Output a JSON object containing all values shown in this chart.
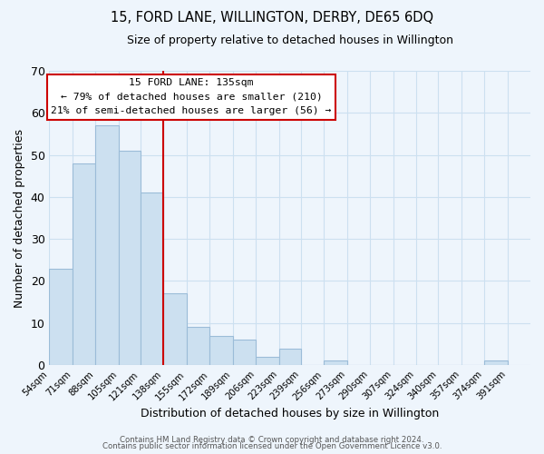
{
  "title": "15, FORD LANE, WILLINGTON, DERBY, DE65 6DQ",
  "subtitle": "Size of property relative to detached houses in Willington",
  "xlabel": "Distribution of detached houses by size in Willington",
  "ylabel": "Number of detached properties",
  "bar_color": "#cce0f0",
  "bar_edge_color": "#9bbcd8",
  "bin_edges": [
    54,
    71,
    88,
    105,
    121,
    138,
    155,
    172,
    189,
    206,
    223,
    239,
    256,
    273,
    290,
    307,
    324,
    340,
    357,
    374,
    391
  ],
  "bar_heights": [
    23,
    48,
    57,
    51,
    41,
    17,
    9,
    7,
    6,
    2,
    4,
    0,
    1,
    0,
    0,
    0,
    0,
    0,
    0,
    1
  ],
  "tick_labels": [
    "54sqm",
    "71sqm",
    "88sqm",
    "105sqm",
    "121sqm",
    "138sqm",
    "155sqm",
    "172sqm",
    "189sqm",
    "206sqm",
    "223sqm",
    "239sqm",
    "256sqm",
    "273sqm",
    "290sqm",
    "307sqm",
    "324sqm",
    "340sqm",
    "357sqm",
    "374sqm",
    "391sqm"
  ],
  "tick_positions": [
    54,
    71,
    88,
    105,
    121,
    138,
    155,
    172,
    189,
    206,
    223,
    239,
    256,
    273,
    290,
    307,
    324,
    340,
    357,
    374,
    391
  ],
  "vline_x": 138,
  "vline_color": "#cc0000",
  "ylim": [
    0,
    70
  ],
  "yticks": [
    0,
    10,
    20,
    30,
    40,
    50,
    60,
    70
  ],
  "xlim_left": 54,
  "xlim_right": 408,
  "annotation_title": "15 FORD LANE: 135sqm",
  "annotation_line1": "← 79% of detached houses are smaller (210)",
  "annotation_line2": "21% of semi-detached houses are larger (56) →",
  "annotation_box_color": "#ffffff",
  "annotation_box_edge": "#cc0000",
  "footer_line1": "Contains HM Land Registry data © Crown copyright and database right 2024.",
  "footer_line2": "Contains public sector information licensed under the Open Government Licence v3.0.",
  "grid_color": "#cce0f0",
  "background_color": "#eef5fc"
}
